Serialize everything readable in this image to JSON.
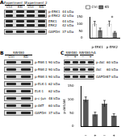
{
  "panel_labels": [
    "A",
    "B",
    "C"
  ],
  "blots": [
    {
      "groups": [
        "Experiment 1",
        "Experiment 2"
      ],
      "lanes": [
        "Ctrl",
        "KD",
        "Ctrl",
        "KD"
      ],
      "rows": [
        {
          "names": [
            "p-ERK1",
            "p-ERK2"
          ],
          "mws": [
            "44 kDa",
            "42 kDa"
          ]
        },
        {
          "names": [
            "ERK1",
            "ERK2"
          ],
          "mws": [
            "44 kDa",
            "42 kDa"
          ]
        },
        {
          "names": [
            "GAPDH"
          ],
          "mws": [
            "37 kDa"
          ]
        }
      ]
    },
    {
      "groups": [
        "SW480"
      ],
      "lanes": [
        "Ctrl",
        "KD"
      ],
      "rows": [
        {
          "names": [
            "p-RSK-1"
          ],
          "mws": [
            "90 kDa"
          ]
        },
        {
          "names": [
            "p-RSK-2"
          ],
          "mws": [
            "90 kDa"
          ]
        },
        {
          "names": [
            "p-RSK-3"
          ],
          "mws": [
            "90 kDa"
          ]
        },
        {
          "names": [
            "p-ELK-1"
          ],
          "mws": [
            "62 kDa"
          ]
        },
        {
          "names": [
            "ELK-1"
          ],
          "mws": [
            "62 kDa"
          ]
        },
        {
          "names": [
            "p-c-Jun"
          ],
          "mws": [
            "48 kDa"
          ]
        },
        {
          "names": [
            "p-AKT"
          ],
          "mws": [
            "60 kDa"
          ]
        },
        {
          "names": [
            "GAPDH"
          ],
          "mws": [
            "37 kDa"
          ]
        }
      ]
    },
    {
      "groups": [
        "SW480",
        "SW480/hA"
      ],
      "lanes": [
        "−",
        "+",
        "−",
        "+"
      ],
      "rows": [
        {
          "names": [
            "p-Akt"
          ],
          "mws": [
            "60 kDa"
          ]
        },
        {
          "names": [
            "Akt"
          ],
          "mws": [
            "60 kDa"
          ]
        },
        {
          "names": [
            "GAPDH"
          ],
          "mws": [
            "37 kDa"
          ]
        }
      ]
    }
  ],
  "chart_data": [
    {
      "type": "bar",
      "categories": [
        "p-ERK1",
        "p-ERK2"
      ],
      "series": [
        {
          "name": "Ctrl",
          "color": "#ffffff",
          "values": [
            100,
            100
          ],
          "errors": [
            18,
            20
          ]
        },
        {
          "name": "KD",
          "color": "#6e6e6e",
          "values": [
            55,
            38
          ],
          "errors": [
            15,
            8
          ]
        }
      ],
      "ylim": [
        0,
        150
      ],
      "yticks": [
        0,
        50,
        100,
        150
      ],
      "grid": false,
      "legend": "top",
      "annotations": [
        {
          "text": "*",
          "category": "p-ERK2"
        }
      ]
    },
    {
      "type": "bar",
      "categories": [
        "−",
        "+",
        "−",
        "+"
      ],
      "values": [
        100,
        45,
        85,
        40
      ],
      "errors": [
        10,
        8,
        12,
        7
      ],
      "color": "#555555",
      "ylabel": "p-Akt/Akt",
      "ylim": [
        0,
        150
      ],
      "yticks": [
        0,
        50,
        100,
        150
      ],
      "grid": false
    }
  ]
}
